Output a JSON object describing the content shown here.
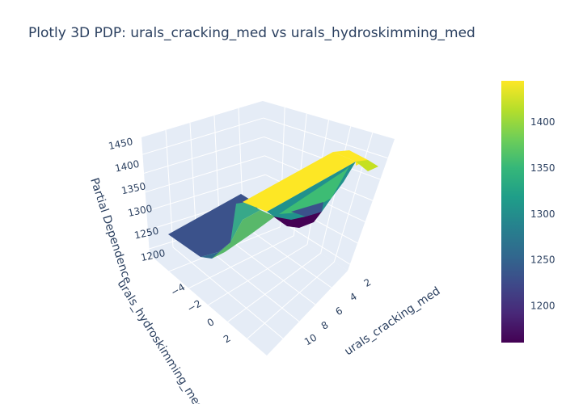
{
  "chart_data": {
    "type": "surface",
    "title": "Plotly 3D PDP: urals_cracking_med vs urals_hydroskimming_med",
    "x_axis_label": "urals_cracking_med",
    "y_axis_label": "urals_hydroskimming_med",
    "z_axis_label": "Partial Dependence",
    "z_ticks": [
      "1200",
      "1250",
      "1300",
      "1350",
      "1400",
      "1450"
    ],
    "x_ticks": [
      "2",
      "4",
      "6",
      "8",
      "10"
    ],
    "y_ticks": [
      "−4",
      "−2",
      "0",
      "2"
    ],
    "colorscale": "Viridis",
    "colorbar_ticks": [
      "1200",
      "1250",
      "1300",
      "1350",
      "1400"
    ],
    "colorbar_range": [
      1160,
      1445
    ],
    "colorscale_colors": [
      "#440154",
      "#482878",
      "#3e4989",
      "#31688e",
      "#26828e",
      "#1f9e89",
      "#35b779",
      "#6ece58",
      "#b5de2b",
      "#fde725"
    ],
    "approx_levels": {
      "low_plateau": 1245,
      "high_plateau": 1440,
      "dip_min": 1165
    }
  }
}
